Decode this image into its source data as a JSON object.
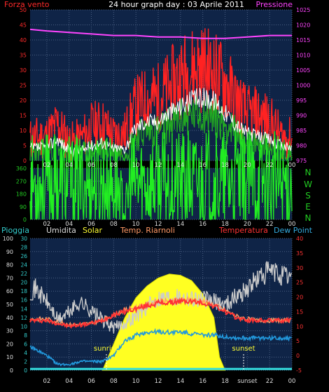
{
  "header": {
    "left_label": "Forza vento",
    "title": "24 hour graph day : 03 Aprile 2011",
    "right_label": "Pressione"
  },
  "x_ticks": [
    "02",
    "04",
    "06",
    "08",
    "10",
    "12",
    "14",
    "16",
    "18",
    "20",
    "22",
    "00"
  ],
  "x_ticks_bottom": [
    "02",
    "04",
    "06",
    "08",
    "10",
    "12",
    "14",
    "16",
    "18",
    "sunset",
    "22",
    "00"
  ],
  "panel1": {
    "left_axis_ticks": [
      0,
      5,
      10,
      15,
      20,
      25,
      30,
      35,
      40,
      45,
      50
    ],
    "right_axis_ticks": [
      975,
      980,
      985,
      990,
      995,
      1000,
      1005,
      1010,
      1015,
      1020,
      1025
    ],
    "left_color": "#ff2a2a",
    "right_color": "#ff44ff"
  },
  "panel2": {
    "left_axis_ticks": [
      0,
      90,
      180,
      270,
      360
    ],
    "compass": [
      "N",
      "W",
      "S",
      "E",
      "N"
    ],
    "compass_color": "#22cc22"
  },
  "panel3": {
    "labels": [
      {
        "text": "Pioggia",
        "color": "#33cccc"
      },
      {
        "text": "Umidita",
        "color": "#dddddd"
      },
      {
        "text": "Solar",
        "color": "#ffff33"
      },
      {
        "text": "Temp. Riarnoli",
        "color": "#ff9966"
      },
      {
        "text": "Temperatura",
        "color": "#ff3333"
      },
      {
        "text": "Dew Point",
        "color": "#33aadd"
      }
    ],
    "left_axis_ticks": [
      0,
      10,
      20,
      30,
      40,
      50,
      60,
      70,
      80,
      90,
      100
    ],
    "rain_axis_ticks": [
      0,
      2,
      4,
      6,
      8,
      10,
      12,
      14,
      16,
      18,
      20,
      22,
      24,
      26,
      28,
      30
    ],
    "right_axis_ticks": [
      -5,
      0,
      5,
      10,
      15,
      20,
      25,
      30,
      35,
      40
    ],
    "sunrise_label": "sunrise",
    "sunset_label": "sunset"
  },
  "chart_data": [
    {
      "type": "line",
      "title": "24 hour graph day : 03 Aprile 2011",
      "x_unit": "hour",
      "x_range": [
        0.5,
        24
      ],
      "ylim_left": [
        0,
        50
      ],
      "ylim_right": [
        975,
        1025
      ],
      "series": [
        {
          "name": "Forza vento",
          "axis": "left",
          "style": "gust-red",
          "x": [
            0.5,
            2,
            3,
            4,
            5,
            6,
            7,
            8,
            9,
            10,
            11,
            12,
            13,
            14,
            15,
            16,
            17,
            18,
            19,
            20,
            21,
            22,
            23,
            24
          ],
          "y": [
            7,
            8,
            12,
            6,
            7,
            11,
            12,
            8,
            9,
            18,
            20,
            21,
            24,
            28,
            30,
            31,
            29,
            26,
            20,
            15,
            15,
            13,
            8,
            7
          ]
        },
        {
          "name": "",
          "axis": "left",
          "style": "avg-white",
          "x": [
            0.5,
            2,
            3,
            4,
            5,
            6,
            7,
            8,
            9,
            10,
            11,
            12,
            13,
            14,
            15,
            16,
            17,
            18,
            19,
            20,
            21,
            22,
            23,
            24
          ],
          "y": [
            4,
            4.5,
            7,
            3,
            3,
            5,
            6,
            4,
            4,
            11,
            13,
            13,
            16,
            18,
            20,
            21,
            20,
            16,
            12,
            9,
            8,
            7,
            5,
            4
          ]
        },
        {
          "name": "",
          "axis": "left",
          "style": "green",
          "x": [
            0.5,
            2,
            3,
            4,
            5,
            6,
            7,
            8,
            9,
            10,
            11,
            12,
            13,
            14,
            15,
            16,
            17,
            18,
            19,
            20,
            21,
            22,
            23,
            24
          ],
          "y": [
            3,
            3,
            5,
            2,
            2,
            3,
            4,
            3,
            3,
            8,
            10,
            10,
            12,
            14,
            15,
            16,
            15,
            12,
            9,
            6,
            5,
            5,
            3,
            3
          ]
        },
        {
          "name": "Pressione",
          "axis": "right",
          "x": [
            0.5,
            2,
            4,
            6,
            8,
            10,
            12,
            14,
            16,
            18,
            20,
            22,
            24
          ],
          "y": [
            1018.5,
            1018,
            1017.5,
            1017,
            1016.5,
            1016.5,
            1016,
            1016,
            1015.5,
            1015.5,
            1016,
            1016.5,
            1016.5
          ]
        }
      ]
    },
    {
      "type": "line",
      "x_unit": "hour",
      "x_range": [
        0.5,
        24
      ],
      "ylim": [
        0,
        360
      ],
      "series": [
        {
          "name": "",
          "color": "#22ee22",
          "x": [
            0.5,
            2,
            3,
            4,
            5,
            6,
            7,
            8,
            8.5,
            9,
            9.5,
            10,
            12,
            14,
            16,
            18,
            20,
            22,
            23,
            24
          ],
          "y": [
            255,
            250,
            255,
            245,
            250,
            250,
            245,
            250,
            200,
            40,
            250,
            255,
            260,
            262,
            262,
            262,
            262,
            262,
            255,
            260
          ]
        }
      ]
    },
    {
      "type": "line",
      "x_unit": "hour",
      "x_range": [
        0.5,
        24
      ],
      "ylim_left": [
        0,
        100
      ],
      "ylim_rain": [
        0,
        30
      ],
      "ylim_right": [
        -5,
        40
      ],
      "series": [
        {
          "name": "Solar",
          "axis": "left",
          "style": "area",
          "x": [
            7,
            8,
            9,
            10,
            11,
            12,
            13,
            14,
            15,
            16,
            17,
            17.5,
            18
          ],
          "y": [
            0,
            20,
            40,
            55,
            64,
            70,
            73,
            72,
            68,
            58,
            40,
            10,
            0
          ]
        },
        {
          "name": "Umidita",
          "axis": "left",
          "x": [
            0.5,
            1,
            2,
            3,
            4,
            5,
            6,
            7,
            8,
            9,
            10,
            11,
            12,
            13,
            14,
            15,
            16,
            17,
            18,
            19,
            20,
            21,
            22,
            23,
            24
          ],
          "y": [
            60,
            62,
            52,
            38,
            44,
            52,
            45,
            38,
            32,
            36,
            41,
            48,
            55,
            56,
            56,
            55,
            54,
            52,
            50,
            56,
            62,
            70,
            75,
            72,
            70
          ]
        },
        {
          "name": "Temperatura",
          "axis": "right",
          "x": [
            0.5,
            2,
            4,
            6,
            7,
            8,
            9,
            10,
            11,
            12,
            13,
            14,
            15,
            16,
            17,
            18,
            19,
            20,
            21,
            22,
            23,
            24
          ],
          "y": [
            12,
            12,
            10,
            11,
            12,
            14,
            15,
            16,
            17,
            18,
            18,
            18.5,
            18.5,
            18,
            17,
            15,
            13,
            12,
            12,
            12,
            12,
            12
          ]
        },
        {
          "name": "Temp. Riarnoli",
          "axis": "right",
          "x": [
            0.5,
            2,
            4,
            6,
            7,
            8,
            9,
            10,
            11,
            12,
            13,
            14,
            15,
            16,
            17,
            18,
            19,
            20,
            21,
            22,
            23,
            24
          ],
          "y": [
            12.5,
            12.5,
            10.5,
            11,
            12,
            14,
            15.5,
            16.5,
            17.5,
            18.5,
            18.5,
            19,
            19,
            18.5,
            17.5,
            15.5,
            13.5,
            12.5,
            12,
            12,
            12,
            12
          ]
        },
        {
          "name": "Dew Point",
          "axis": "right",
          "x": [
            0.5,
            2,
            3,
            4,
            5,
            6,
            7,
            8,
            9,
            10,
            11,
            12,
            13,
            14,
            15,
            16,
            17,
            18,
            19,
            20,
            21,
            22,
            23,
            24
          ],
          "y": [
            3,
            0,
            -3,
            -3,
            -2,
            -2,
            -2,
            0,
            5,
            7,
            8,
            8,
            8,
            8,
            7.5,
            7,
            7,
            6.5,
            6,
            6,
            6,
            6,
            6,
            6
          ]
        },
        {
          "name": "Pioggia",
          "axis": "rain",
          "x": [
            0.5,
            24
          ],
          "y": [
            0.3,
            0.3
          ]
        }
      ]
    }
  ]
}
